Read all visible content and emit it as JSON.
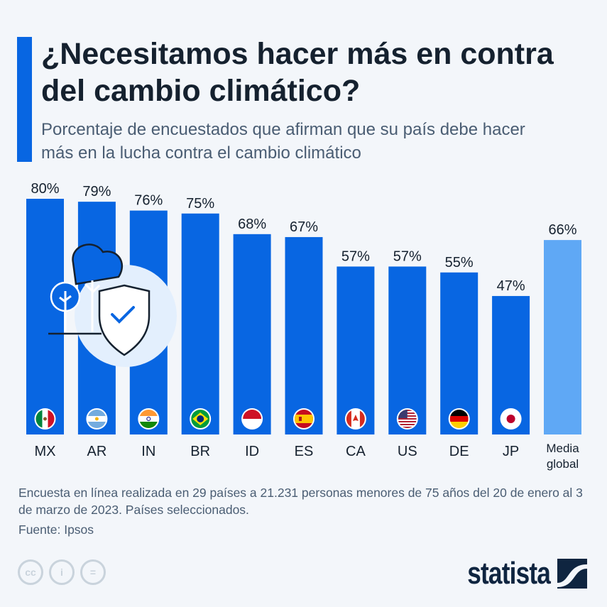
{
  "title": "¿Necesitamos hacer más en contra del cambio climático?",
  "subtitle": "Porcentaje de encuestados que afirman que su país debe hacer más en la lucha contra el cambio climático",
  "note": "Encuesta en línea realizada en 29 países a 21.231 personas menores de 75 años del 20 de enero al 3 de marzo de 2023. Países seleccionados.",
  "source": "Fuente: Ipsos",
  "brand": "statista",
  "license_icons": [
    "cc-icon",
    "by-icon",
    "nd-icon"
  ],
  "colors": {
    "bar": "#0866e2",
    "average": "#5fa8f5",
    "accent": "#0866e2"
  },
  "chart_data": {
    "type": "bar",
    "categories": [
      "MX",
      "AR",
      "IN",
      "BR",
      "ID",
      "ES",
      "CA",
      "US",
      "DE",
      "JP",
      "Media global"
    ],
    "values": [
      80,
      79,
      76,
      75,
      68,
      67,
      57,
      57,
      55,
      47,
      66
    ],
    "labels": [
      "80%",
      "79%",
      "76%",
      "75%",
      "68%",
      "67%",
      "57%",
      "57%",
      "55%",
      "47%",
      "66%"
    ],
    "flags": [
      "mexico-flag-icon",
      "argentina-flag-icon",
      "india-flag-icon",
      "brazil-flag-icon",
      "indonesia-flag-icon",
      "spain-flag-icon",
      "canada-flag-icon",
      "usa-flag-icon",
      "germany-flag-icon",
      "japan-flag-icon",
      null
    ],
    "ylim": [
      0,
      80
    ],
    "grid": false,
    "legend": "none"
  }
}
